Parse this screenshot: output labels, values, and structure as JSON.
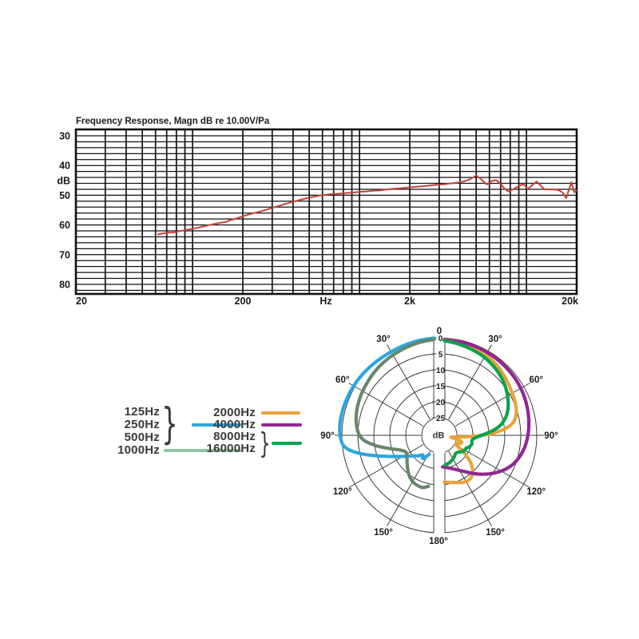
{
  "page": {
    "background": "#ffffff"
  },
  "colors": {
    "response_curve": "#C04535",
    "blue": "#2AA7DD",
    "sage_legend": "#90C5A2",
    "sage_curve": "#67876D",
    "orange": "#E8A33C",
    "purple": "#92278F",
    "green": "#0BA24E",
    "grid_black": "#111111",
    "polar_grid": "#3D3D3D",
    "text": "#1a1a1a",
    "legend_text": "#3a3a3a"
  },
  "legend": {
    "left_labels": [
      "125Hz",
      "250Hz",
      "500Hz",
      "1000Hz"
    ],
    "right_labels": [
      "2000Hz",
      "4000Hz",
      "8000Hz",
      "16000Hz"
    ],
    "brace_char": "}"
  },
  "chart_data": [
    {
      "type": "line",
      "title": "Frequency Response, Magn dB re 10.00V/Pa",
      "xlabel": "Hz",
      "ylabel": "dB",
      "x_scale": "log",
      "xlim": [
        20,
        20000
      ],
      "ylim_db_top_to_bottom": [
        28,
        83
      ],
      "grid_db_step": 2,
      "x_ticks": [
        {
          "value": 20,
          "label": "20"
        },
        {
          "value": 200,
          "label": "200"
        },
        {
          "value": 2000,
          "label": "2k"
        },
        {
          "value": 20000,
          "label": "20k"
        }
      ],
      "y_ticks": [
        30,
        40,
        50,
        60,
        70,
        80
      ],
      "color": "#C04535",
      "points": [
        [
          62,
          63.2
        ],
        [
          66,
          62.9
        ],
        [
          71,
          62.6
        ],
        [
          76,
          62.6
        ],
        [
          82,
          62.2
        ],
        [
          89,
          61.8
        ],
        [
          96,
          61.5
        ],
        [
          104,
          61.1
        ],
        [
          113,
          60.7
        ],
        [
          122,
          60.2
        ],
        [
          132,
          59.8
        ],
        [
          143,
          59.4
        ],
        [
          150,
          59.2
        ],
        [
          158,
          59.0
        ],
        [
          166,
          58.5
        ],
        [
          176,
          58.1
        ],
        [
          188,
          57.6
        ],
        [
          200,
          57.1
        ],
        [
          220,
          56.4
        ],
        [
          242,
          55.8
        ],
        [
          266,
          55.2
        ],
        [
          292,
          54.5
        ],
        [
          320,
          53.8
        ],
        [
          352,
          53.1
        ],
        [
          388,
          52.4
        ],
        [
          426,
          51.8
        ],
        [
          468,
          51.2
        ],
        [
          515,
          50.7
        ],
        [
          566,
          50.2
        ],
        [
          622,
          49.9
        ],
        [
          684,
          49.6
        ],
        [
          752,
          49.5
        ],
        [
          826,
          49.3
        ],
        [
          908,
          49.1
        ],
        [
          1000,
          48.9
        ],
        [
          1100,
          48.7
        ],
        [
          1210,
          48.5
        ],
        [
          1330,
          48.4
        ],
        [
          1460,
          48.1
        ],
        [
          1610,
          47.8
        ],
        [
          1770,
          47.7
        ],
        [
          1950,
          47.4
        ],
        [
          2140,
          47.2
        ],
        [
          2360,
          47.0
        ],
        [
          2590,
          46.8
        ],
        [
          2850,
          46.5
        ],
        [
          3130,
          46.4
        ],
        [
          3450,
          46.1
        ],
        [
          3790,
          45.8
        ],
        [
          4200,
          45.4
        ],
        [
          4600,
          44.6
        ],
        [
          5000,
          43.4
        ],
        [
          5400,
          44.8
        ],
        [
          5800,
          46.4
        ],
        [
          6200,
          45.2
        ],
        [
          6600,
          44.9
        ],
        [
          7000,
          46.2
        ],
        [
          7400,
          47.8
        ],
        [
          7800,
          48.8
        ],
        [
          8400,
          47.9
        ],
        [
          9000,
          46.9
        ],
        [
          9600,
          46.3
        ],
        [
          10200,
          47.9
        ],
        [
          10900,
          46.5
        ],
        [
          11500,
          45.4
        ],
        [
          12200,
          46.8
        ],
        [
          12800,
          48.0
        ],
        [
          13600,
          48.0
        ],
        [
          14600,
          48.1
        ],
        [
          15600,
          48.3
        ],
        [
          16400,
          49.0
        ],
        [
          17300,
          51.0
        ],
        [
          18600,
          45.6
        ],
        [
          19300,
          49.0
        ],
        [
          20000,
          48.4
        ]
      ]
    },
    {
      "type": "polar",
      "radial_unit": "dB",
      "radial_ticks": [
        0,
        5,
        10,
        15,
        20,
        25
      ],
      "angle_labels": [
        "0",
        "30°",
        "60°",
        "90°",
        "120°",
        "150°",
        "180°"
      ],
      "series": [
        {
          "name": "125/250/500Hz",
          "side": "left",
          "color": "#2AA7DD",
          "points": [
            [
              3,
              0
            ],
            [
              12,
              0.15
            ],
            [
              22,
              0.3
            ],
            [
              32,
              0.3
            ],
            [
              42,
              0.1
            ],
            [
              52,
              -0.2
            ],
            [
              62,
              -0.5
            ],
            [
              72,
              -0.7
            ],
            [
              80,
              -0.8
            ],
            [
              87,
              -0.75
            ],
            [
              92,
              -0.4
            ],
            [
              96,
              0.3
            ],
            [
              99,
              1.8
            ],
            [
              102,
              4.2
            ],
            [
              105,
              7
            ],
            [
              108,
              9.8
            ],
            [
              111,
              12.2
            ],
            [
              114,
              14.2
            ],
            [
              117,
              15.9
            ],
            [
              120,
              17.3
            ],
            [
              124,
              18.8
            ],
            [
              128,
              20
            ],
            [
              132,
              20.9
            ],
            [
              135,
              21.5
            ],
            [
              138,
              22.2
            ],
            [
              140,
              22.5
            ],
            [
              142,
              22.1
            ],
            [
              144,
              21.6
            ],
            [
              146,
              21.9
            ],
            [
              149,
              22.9
            ],
            [
              152,
              23.7
            ]
          ]
        },
        {
          "name": "1000Hz",
          "side": "left",
          "color": "#67876D",
          "points": [
            [
              3,
              0.4
            ],
            [
              13,
              0.8
            ],
            [
              23,
              1.2
            ],
            [
              33,
              1.6
            ],
            [
              43,
              2
            ],
            [
              53,
              2.5
            ],
            [
              62,
              2.9
            ],
            [
              70,
              3.3
            ],
            [
              78,
              3.9
            ],
            [
              84,
              4.5
            ],
            [
              89,
              5.3
            ],
            [
              93,
              6.5
            ],
            [
              96,
              8.2
            ],
            [
              99,
              10.2
            ],
            [
              102,
              12.4
            ],
            [
              105,
              14.4
            ],
            [
              108,
              16.2
            ],
            [
              111,
              17.5
            ],
            [
              114,
              18.4
            ],
            [
              117,
              18.8
            ],
            [
              121,
              18.7
            ],
            [
              126,
              18
            ],
            [
              131,
              17.2
            ],
            [
              136,
              16.2
            ],
            [
              141,
              15.2
            ],
            [
              146,
              14.3
            ],
            [
              151,
              13.7
            ],
            [
              156,
              13.4
            ],
            [
              161,
              13.3
            ],
            [
              165,
              13.7
            ],
            [
              168,
              14.2
            ]
          ]
        },
        {
          "name": "2000Hz",
          "side": "right",
          "color": "#E8A33C",
          "points": [
            [
              3,
              0.4
            ],
            [
              12,
              0.5
            ],
            [
              21,
              0.8
            ],
            [
              30,
              1.3
            ],
            [
              38,
              2
            ],
            [
              45,
              2.7
            ],
            [
              52,
              3.4
            ],
            [
              58,
              4
            ],
            [
              64,
              4.4
            ],
            [
              70,
              4.9
            ],
            [
              75,
              5.6
            ],
            [
              79,
              6.6
            ],
            [
              82,
              8
            ],
            [
              84,
              9.6
            ],
            [
              86,
              11.6
            ],
            [
              88,
              14
            ],
            [
              90,
              17
            ],
            [
              92,
              20.2
            ],
            [
              94,
              23.2
            ],
            [
              96,
              25.4
            ],
            [
              98,
              26.6
            ],
            [
              100,
              26.7
            ],
            [
              102,
              25.6
            ],
            [
              104,
              24.2
            ],
            [
              107,
              23.2
            ],
            [
              110,
              23.3
            ],
            [
              113,
              24
            ],
            [
              116,
              24.6
            ],
            [
              119,
              24.4
            ],
            [
              122,
              23.2
            ],
            [
              125,
              21.2
            ],
            [
              128,
              19.2
            ],
            [
              131,
              17.5
            ],
            [
              134,
              16.2
            ],
            [
              138,
              14.9
            ],
            [
              142,
              14.1
            ],
            [
              147,
              13.7
            ],
            [
              152,
              13.9
            ],
            [
              157,
              14.4
            ],
            [
              162,
              15
            ],
            [
              167,
              15.4
            ],
            [
              171,
              15.6
            ],
            [
              174,
              15.7
            ]
          ]
        },
        {
          "name": "4000Hz",
          "side": "right",
          "color": "#92278F",
          "points": [
            [
              3,
              0.5
            ],
            [
              15,
              0.5
            ],
            [
              27,
              0.5
            ],
            [
              39,
              0.6
            ],
            [
              51,
              0.8
            ],
            [
              61,
              1.1
            ],
            [
              70,
              1.5
            ],
            [
              79,
              2
            ],
            [
              88,
              2.6
            ],
            [
              96,
              3.3
            ],
            [
              103,
              4.2
            ],
            [
              110,
              5.4
            ],
            [
              116,
              6.9
            ],
            [
              122,
              8.8
            ],
            [
              128,
              10.9
            ],
            [
              134,
              13
            ],
            [
              140,
              15.1
            ],
            [
              146,
              16.9
            ],
            [
              152,
              18.2
            ],
            [
              158,
              19.2
            ],
            [
              164,
              19.9
            ],
            [
              169,
              20.3
            ],
            [
              174,
              20.6
            ]
          ]
        },
        {
          "name": "8000/16000Hz",
          "side": "right",
          "color": "#0BA24E",
          "points": [
            [
              3,
              0.8
            ],
            [
              12,
              1.3
            ],
            [
              21,
              1.8
            ],
            [
              30,
              2.3
            ],
            [
              38,
              3
            ],
            [
              45,
              3.7
            ],
            [
              52,
              4.6
            ],
            [
              58,
              5.5
            ],
            [
              64,
              6.5
            ],
            [
              70,
              7.7
            ],
            [
              75,
              9
            ],
            [
              80,
              10.8
            ],
            [
              84,
              13
            ],
            [
              87,
              15.2
            ],
            [
              90,
              17.3
            ],
            [
              93,
              18.8
            ],
            [
              96,
              19.8
            ],
            [
              100,
              20.2
            ],
            [
              104,
              20
            ],
            [
              108,
              20.1
            ],
            [
              112,
              20.6
            ],
            [
              116,
              21.2
            ],
            [
              120,
              21.2
            ],
            [
              124,
              21.5
            ],
            [
              129,
              22.2
            ],
            [
              134,
              22.8
            ],
            [
              139,
              22.8
            ],
            [
              144,
              22.4
            ],
            [
              149,
              22
            ],
            [
              154,
              21.7
            ],
            [
              159,
              21.4
            ],
            [
              164,
              21.2
            ],
            [
              169,
              21
            ]
          ]
        }
      ]
    }
  ]
}
